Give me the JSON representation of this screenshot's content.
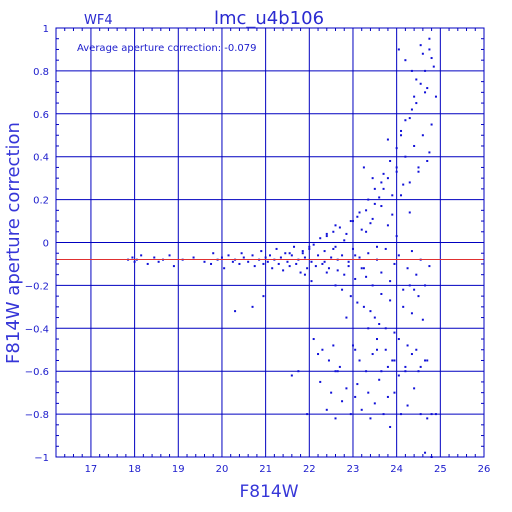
{
  "chart_data": {
    "type": "scatter",
    "title": "lmc_u4b106",
    "chip_label": "WF4",
    "annotation": "Average aperture correction:  -0.079",
    "xlabel": "F814W",
    "ylabel": "F814W aperture correction",
    "xlim": [
      16.2,
      26
    ],
    "ylim": [
      -1,
      1
    ],
    "x_ticks": [
      "17",
      "18",
      "19",
      "20",
      "21",
      "22",
      "23",
      "24",
      "25",
      "26"
    ],
    "y_ticks": [
      "1",
      "0.8",
      "0.6",
      "0.4",
      "0.2",
      "0",
      "−0.2",
      "−0.4",
      "−0.6",
      "−0.8",
      "−1"
    ],
    "reference_line_y": -0.079,
    "colors": {
      "points": "#1010d8",
      "grid": "#0000c0",
      "reference_line": "#e03030",
      "text": "#2a2ad0"
    },
    "x": [
      17.85,
      17.95,
      18.0,
      18.05,
      18.15,
      18.3,
      18.45,
      18.55,
      18.65,
      18.8,
      18.9,
      19.1,
      19.35,
      19.6,
      19.75,
      19.8,
      19.9,
      20.0,
      20.05,
      20.15,
      20.25,
      20.3,
      20.4,
      20.45,
      20.5,
      20.6,
      20.7,
      20.75,
      20.85,
      20.9,
      20.95,
      21.0,
      21.05,
      21.1,
      21.15,
      21.2,
      21.25,
      21.3,
      21.35,
      21.4,
      21.45,
      21.5,
      21.55,
      21.6,
      21.65,
      21.7,
      21.75,
      21.8,
      21.85,
      21.9,
      21.95,
      22.0,
      22.05,
      22.1,
      22.15,
      22.2,
      22.25,
      22.3,
      22.35,
      22.4,
      22.45,
      22.5,
      22.55,
      22.6,
      22.65,
      22.7,
      22.75,
      22.8,
      22.85,
      22.9,
      22.95,
      23.0,
      23.05,
      23.1,
      23.15,
      23.2,
      23.25,
      23.3,
      23.35,
      23.4,
      23.45,
      23.5,
      23.55,
      23.6,
      23.65,
      23.7,
      23.75,
      23.8,
      23.85,
      23.9,
      23.95,
      24.0,
      24.05,
      24.1,
      24.15,
      24.2,
      24.25,
      24.3,
      24.35,
      24.4,
      24.45,
      24.5,
      24.55,
      24.6,
      24.65,
      24.7,
      24.75,
      24.8,
      21.55,
      21.85,
      21.9,
      22.0,
      22.05,
      22.35,
      22.4,
      22.4,
      22.55,
      22.6,
      22.6,
      22.65,
      22.75,
      22.8,
      22.9,
      22.95,
      23.0,
      23.05,
      23.1,
      23.15,
      23.2,
      23.25,
      23.3,
      23.3,
      23.35,
      23.4,
      23.45,
      23.5,
      23.5,
      23.55,
      23.6,
      23.65,
      23.65,
      23.7,
      23.75,
      23.8,
      23.85,
      23.85,
      23.9,
      23.95,
      24.0,
      24.0,
      24.05,
      24.1,
      24.15,
      24.15,
      24.2,
      24.25,
      24.3,
      24.35,
      24.35,
      24.4,
      24.45,
      24.5,
      24.55,
      24.6,
      24.65,
      24.7,
      24.75,
      24.8,
      23.25,
      23.35,
      23.45,
      23.55,
      23.65,
      23.75,
      23.8,
      23.9,
      24.0,
      24.1,
      24.2,
      24.3,
      24.4,
      24.45,
      24.55,
      24.65,
      24.75,
      22.1,
      22.2,
      22.3,
      22.45,
      22.55,
      22.6,
      22.7,
      22.85,
      23.0,
      23.05,
      23.15,
      23.3,
      23.45,
      23.55,
      23.65,
      23.8,
      23.95,
      24.05,
      24.2,
      24.35,
      24.5,
      24.65,
      20.3,
      20.7,
      20.95,
      21.6,
      21.75,
      21.95,
      22.25,
      22.4,
      22.5,
      22.6,
      22.65,
      22.75,
      22.85,
      22.95,
      23.05,
      23.1,
      23.2,
      23.35,
      23.4,
      23.5,
      23.6,
      23.7,
      23.8,
      23.85,
      23.95,
      24.1,
      24.25,
      24.4,
      24.55,
      24.7,
      24.8,
      24.9,
      24.05,
      24.2,
      24.35,
      24.45,
      24.55,
      24.6,
      24.7,
      24.75,
      24.85,
      24.9,
      24.3,
      24.5,
      24.65,
      24.8
    ],
    "y": [
      -0.08,
      -0.07,
      -0.09,
      -0.08,
      -0.06,
      -0.1,
      -0.07,
      -0.09,
      -0.08,
      -0.06,
      -0.11,
      -0.08,
      -0.07,
      -0.09,
      -0.1,
      -0.05,
      -0.08,
      -0.07,
      -0.12,
      -0.06,
      -0.09,
      -0.08,
      -0.1,
      -0.05,
      -0.07,
      -0.09,
      -0.06,
      -0.11,
      -0.08,
      -0.04,
      -0.1,
      -0.07,
      -0.09,
      -0.06,
      -0.12,
      -0.08,
      -0.03,
      -0.1,
      -0.07,
      -0.13,
      -0.05,
      -0.09,
      -0.11,
      -0.06,
      -0.02,
      -0.1,
      -0.08,
      -0.14,
      -0.05,
      -0.07,
      -0.12,
      -0.03,
      -0.09,
      -0.01,
      -0.11,
      -0.06,
      0.02,
      -0.1,
      -0.04,
      0.03,
      -0.12,
      -0.07,
      0.05,
      -0.02,
      -0.13,
      0.07,
      -0.06,
      -0.15,
      0.04,
      -0.09,
      0.1,
      -0.03,
      -0.17,
      0.12,
      -0.07,
      0.06,
      -0.12,
      0.15,
      -0.05,
      0.09,
      -0.2,
      0.18,
      -0.08,
      0.21,
      -0.14,
      0.25,
      -0.03,
      0.3,
      -0.18,
      0.13,
      -0.1,
      0.35,
      -0.06,
      0.22,
      -0.22,
      0.4,
      -0.12,
      0.28,
      -0.04,
      0.45,
      -0.15,
      0.33,
      -0.08,
      0.5,
      -0.2,
      0.38,
      -0.11,
      0.55,
      -0.05,
      -0.04,
      -0.15,
      -0.02,
      -0.18,
      -0.09,
      0.04,
      -0.14,
      -0.03,
      -0.2,
      0.08,
      -0.08,
      -0.22,
      0.01,
      -0.11,
      -0.25,
      0.1,
      -0.06,
      -0.28,
      0.14,
      -0.12,
      -0.3,
      0.05,
      -0.16,
      0.2,
      -0.32,
      0.11,
      -0.35,
      0.25,
      -0.02,
      -0.38,
      0.17,
      -0.24,
      0.32,
      -0.4,
      0.08,
      0.38,
      -0.27,
      0.22,
      -0.42,
      0.44,
      0.03,
      -0.45,
      0.5,
      -0.3,
      0.27,
      0.57,
      -0.48,
      0.14,
      0.62,
      -0.33,
      0.68,
      -0.5,
      0.35,
      0.74,
      -0.36,
      0.8,
      -0.55,
      0.42,
      0.86,
      0.35,
      -0.4,
      0.3,
      -0.45,
      0.28,
      -0.5,
      0.48,
      -0.55,
      0.33,
      0.52,
      -0.6,
      0.58,
      -0.22,
      0.65,
      -0.58,
      0.7,
      0.9,
      -0.45,
      -0.52,
      -0.5,
      -0.55,
      -0.48,
      -0.6,
      -0.58,
      -0.35,
      -0.48,
      -0.5,
      -0.55,
      -0.6,
      -0.52,
      -0.5,
      -0.6,
      -0.58,
      -0.55,
      -0.62,
      -0.58,
      -0.52,
      -0.6,
      -0.55,
      -0.32,
      -0.3,
      -0.25,
      -0.62,
      -0.6,
      -0.8,
      -0.65,
      -0.78,
      -0.7,
      -0.82,
      -0.6,
      -0.74,
      -0.68,
      -0.8,
      -0.72,
      -0.66,
      -0.78,
      -0.7,
      -0.82,
      -0.75,
      -0.64,
      -0.8,
      -0.72,
      -0.86,
      -0.7,
      -0.8,
      -0.76,
      -0.68,
      -0.8,
      -0.82,
      -0.8,
      -0.8,
      0.9,
      0.85,
      0.8,
      0.76,
      0.92,
      0.88,
      0.72,
      0.95,
      0.82,
      0.68,
      -0.2,
      -0.25,
      -0.98,
      -1.0
    ]
  }
}
